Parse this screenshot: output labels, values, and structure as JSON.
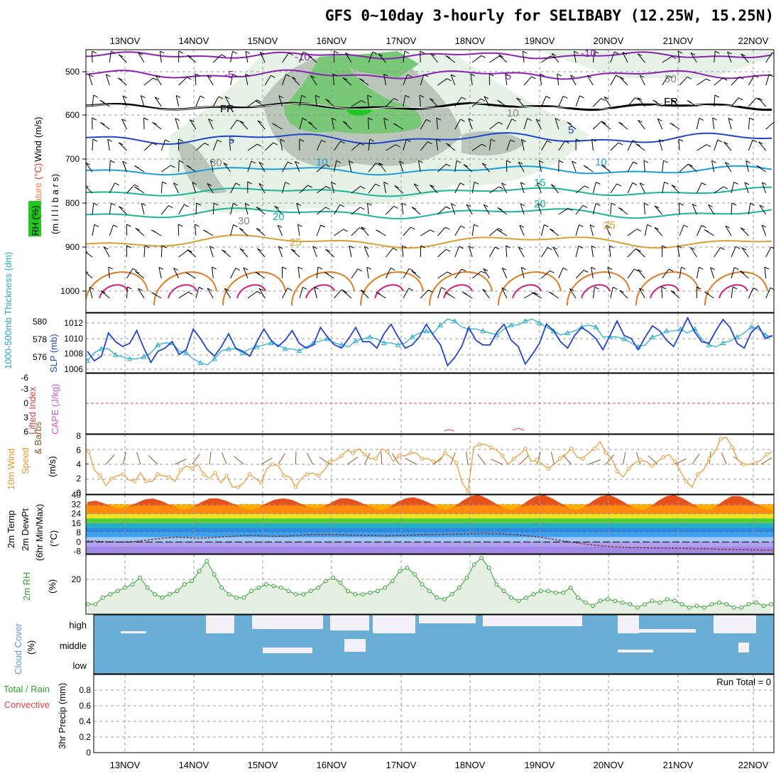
{
  "title": "GFS 0~10day 3-hourly for SELIBABY (12.25W, 15.25N)",
  "dates": [
    "13NOV",
    "14NOV",
    "15NOV",
    "16NOV",
    "17NOV",
    "18NOV",
    "19NOV",
    "20NOV",
    "21NOV",
    "22NOV"
  ],
  "run_total": "Run Total = 0",
  "colors": {
    "rh_green": "#63c363",
    "rh_light": "#e6f2e6",
    "rh_dark": "#b9c6b9",
    "sfc_blue": "#2244cc",
    "thick_cyan": "#22aacc",
    "wind_orange": "#e8962a",
    "cloud_blue": "#6aaed6",
    "rh2m_green": "#2ea02e",
    "li_red": "#e04040"
  },
  "panels": {
    "upper": {
      "labels": {
        "wind": "Wind",
        "wind_unit": "(m/s)",
        "temp": "Temperature",
        "temp_unit": "(°C)",
        "rh": "RH (%)",
        "pressure": "(m i l l i b a r s)"
      },
      "y_ticks": [
        "500",
        "600",
        "700",
        "800",
        "900",
        "1000"
      ],
      "contour_labels": [
        {
          "text": "-10",
          "color": "#8b22b4"
        },
        {
          "text": "-10",
          "color": "#8b22b4"
        },
        {
          "text": "-5",
          "color": "#8b22b4"
        },
        {
          "text": "5",
          "color": "#8b22b4"
        },
        {
          "text": "FR",
          "color": "#000000"
        },
        {
          "text": "FR",
          "color": "#000000"
        },
        {
          "text": "5",
          "color": "#2244cc"
        },
        {
          "text": "5",
          "color": "#2244cc"
        },
        {
          "text": "10",
          "color": "#1aa0dd"
        },
        {
          "text": "10",
          "color": "#1aa0dd"
        },
        {
          "text": "15",
          "color": "#1ab59a"
        },
        {
          "text": "20",
          "color": "#1ab59a"
        },
        {
          "text": "20",
          "color": "#1ab59a"
        },
        {
          "text": "25",
          "color": "#d9a030"
        },
        {
          "text": "25",
          "color": "#d9a030"
        },
        {
          "text": "30",
          "color": "#888888"
        },
        {
          "text": "30",
          "color": "#888888"
        },
        {
          "text": "10",
          "color": "#888888"
        },
        {
          "text": "30",
          "color": "#888888"
        }
      ]
    },
    "sfc": {
      "label_thick": "1000-500mb Thickness (dm)",
      "label_slp": "SLP (mb)",
      "left_ticks": [
        "580",
        "578",
        "576"
      ],
      "right_ticks": [
        "1012",
        "1010",
        "1008",
        "1006"
      ]
    },
    "cape": {
      "label_li": "Lifted Index",
      "label_cape": "CAPE (J/kg)",
      "ticks": [
        "-6",
        "-3",
        "0",
        "3",
        "6"
      ]
    },
    "wind10": {
      "label1": "10m Wind",
      "label2": "Speed",
      "label3": "& Barbs",
      "unit": "(m/s)",
      "ticks": [
        "8",
        "6",
        "4",
        "2",
        "0"
      ]
    },
    "temp2m": {
      "label1": "2m Temp",
      "label2": "2m DewPt",
      "label3": "(6hr Min/Max)",
      "unit": "(°C)",
      "ticks": [
        "40",
        "32",
        "24",
        "16",
        "8",
        "0",
        "-8"
      ]
    },
    "rh2m": {
      "label": "2m RH",
      "unit": "(%)",
      "ticks": [
        "20"
      ]
    },
    "cloud": {
      "label": "Cloud Cover",
      "unit": "(%)",
      "levels": [
        "high",
        "middle",
        "low"
      ]
    },
    "precip": {
      "label": "3hr Precip (mm)",
      "label_total": "Total / Rain",
      "label_conv": "Convective",
      "ticks": [
        "0.8",
        "0.6",
        "0.4",
        "0.2",
        "0"
      ]
    }
  },
  "chart_data": [
    {
      "type": "line",
      "title": "1000-500mb Thickness (dm) / SLP (mb)",
      "x_unit": "3-hourly steps from 12NOV 12Z",
      "ylim_thickness": [
        575,
        581
      ],
      "ylim_slp": [
        1005.5,
        1013
      ],
      "series": [
        {
          "name": "SLP (mb)",
          "values": [
            1008.2,
            1007.0,
            1007.6,
            1010.5,
            1009.4,
            1008.8,
            1009.2,
            1010.8,
            1008.6,
            1006.8,
            1008.2,
            1008.6,
            1009.4,
            1007.8,
            1008.4,
            1011.0,
            1009.8,
            1008.4,
            1007.6,
            1008.8,
            1010.4,
            1008.6,
            1008.2,
            1007.6,
            1009.4,
            1011.0,
            1009.6,
            1008.8,
            1009.6,
            1010.8,
            1009.2,
            1008.6,
            1009.0,
            1011.2,
            1010.0,
            1009.0,
            1008.6,
            1009.8,
            1011.2,
            1009.4,
            1009.4,
            1008.6,
            1010.4,
            1011.6,
            1010.0,
            1008.6,
            1009.0,
            1010.0,
            1011.6,
            1010.2,
            1009.0,
            1006.4,
            1007.4,
            1008.8,
            1011.2,
            1009.6,
            1009.0,
            1009.0,
            1010.6,
            1011.6,
            1009.6,
            1008.8,
            1006.6,
            1007.8,
            1009.2,
            1011.6,
            1010.8,
            1009.4,
            1008.6,
            1010.2,
            1011.2,
            1010.6,
            1009.8,
            1008.4,
            1010.2,
            1012.0,
            1010.2,
            1009.8,
            1008.4,
            1010.0,
            1011.4,
            1010.8,
            1009.6,
            1008.8,
            1010.6,
            1012.4,
            1010.6,
            1009.4,
            1009.2,
            1010.8,
            1012.2,
            1011.2,
            1009.2,
            1008.6,
            1010.6,
            1011.4,
            1009.8,
            1010.2
          ]
        },
        {
          "name": "1000-500mb Thickness (dm)",
          "values": [
            576.2,
            577.0,
            577.4,
            577.4,
            576.8,
            576.6,
            576.4,
            576.4,
            576.6,
            577.0,
            577.8,
            578.0,
            578.0,
            577.2,
            577.0,
            576.4,
            576.0,
            575.8,
            576.4,
            577.2,
            577.4,
            577.4,
            577.0,
            577.4,
            577.6,
            577.8,
            578.0,
            577.8,
            577.4,
            577.4,
            577.2,
            577.6,
            578.0,
            578.2,
            578.4,
            578.0,
            577.8,
            577.6,
            578.2,
            578.4,
            578.6,
            578.4,
            578.0,
            578.0,
            577.8,
            578.0,
            578.6,
            579.0,
            579.2,
            579.0,
            579.8,
            580.4,
            580.2,
            579.6,
            579.4,
            579.4,
            579.2,
            579.0,
            578.8,
            579.4,
            579.8,
            579.8,
            580.2,
            580.4,
            580.0,
            579.6,
            579.2,
            578.8,
            579.0,
            579.2,
            579.6,
            579.8,
            579.6,
            578.6,
            578.6,
            578.6,
            578.4,
            578.0,
            577.6,
            577.8,
            578.6,
            578.8,
            579.2,
            579.2,
            579.4,
            579.0,
            579.4,
            578.4,
            577.8,
            577.6,
            578.0,
            578.2,
            578.6,
            579.0,
            579.6,
            579.4,
            578.8,
            578.6
          ]
        }
      ]
    },
    {
      "type": "line",
      "title": "10m Wind Speed (m/s)",
      "ylim": [
        0,
        8
      ],
      "series": [
        {
          "name": "10m Wind Speed",
          "values": [
            5.8,
            3.2,
            2.4,
            1.0,
            2.0,
            2.4,
            2.6,
            1.8,
            1.6,
            2.8,
            1.6,
            1.6,
            2.6,
            2.4,
            2.2,
            1.6,
            3.2,
            3.8,
            3.4,
            4.0,
            2.6,
            2.0,
            2.8,
            1.4,
            2.4,
            0.8,
            0.8,
            1.4,
            2.6,
            2.0,
            1.4,
            3.4,
            4.0,
            3.8,
            2.4,
            2.2,
            0.8,
            2.0,
            2.6,
            2.8,
            2.4,
            3.2,
            4.4,
            4.6,
            5.2,
            6.0,
            5.6,
            6.2,
            5.4,
            4.8,
            4.8,
            6.2,
            5.8,
            4.4,
            5.2,
            5.2,
            5.6,
            5.6,
            4.8,
            4.8,
            4.4,
            4.4,
            5.6,
            5.0,
            4.2,
            1.4,
            0.2,
            6.4,
            6.8,
            6.8,
            6.4,
            6.0,
            5.2,
            4.0,
            4.8,
            5.4,
            6.2,
            4.4,
            4.6,
            4.0,
            3.4,
            4.0,
            4.8,
            5.4,
            6.2,
            5.0,
            4.8,
            5.6,
            6.2,
            7.2,
            5.6,
            4.8,
            3.0,
            2.2,
            3.4,
            4.2,
            4.6,
            4.4,
            3.8,
            4.4,
            5.0,
            5.4,
            4.4,
            3.0,
            1.6,
            0.8,
            2.6,
            3.2,
            4.8,
            5.8,
            7.6,
            7.8,
            6.4,
            4.6,
            4.0,
            4.0,
            4.2,
            4.6,
            5.4,
            5.8
          ]
        }
      ]
    },
    {
      "type": "area",
      "title": "2m Temp / 2m DewPt (°C)",
      "ylim": [
        -10,
        40
      ],
      "series": [
        {
          "name": "2m Temp",
          "values": [
            34,
            35,
            33,
            30,
            28,
            30,
            33,
            36,
            37,
            35,
            32,
            29,
            27,
            30,
            34,
            37,
            37,
            35,
            32,
            29,
            27,
            29,
            33,
            36,
            37,
            36,
            33,
            30,
            28,
            30,
            34,
            37,
            37,
            35,
            32,
            29,
            27,
            29,
            34,
            37,
            38,
            36,
            33,
            29,
            27,
            30,
            35,
            39,
            40,
            37,
            33,
            29,
            27,
            30,
            35,
            39,
            40,
            37,
            33,
            29,
            27,
            30,
            35,
            39,
            40,
            37,
            33,
            29,
            27,
            30,
            35,
            39,
            40,
            37,
            33,
            29,
            27,
            30,
            35,
            39,
            39,
            36,
            32,
            29,
            27
          ]
        },
        {
          "name": "2m DewPt",
          "values": [
            1.0,
            0.6,
            0.2,
            0.0,
            0.2,
            1.2,
            2.4,
            3.4,
            4.0,
            3.8,
            3.2,
            3.6,
            4.2,
            4.8,
            5.4,
            5.6,
            5.2,
            4.8,
            5.0,
            5.6,
            6.2,
            6.4,
            6.2,
            6.0,
            5.8,
            5.6,
            5.4,
            5.2,
            5.4,
            5.8,
            6.0,
            6.2,
            6.4,
            6.6,
            6.8,
            7.0,
            7.2,
            7.0,
            6.6,
            6.0,
            5.2,
            4.0,
            2.6,
            1.0,
            -0.4,
            -1.6,
            -2.8,
            -3.6,
            -4.2,
            -4.6,
            -4.8,
            -5.0,
            -5.2,
            -5.2,
            -5.4,
            -5.6,
            -5.8,
            -6.0,
            -6.2,
            -6.4,
            -6.6,
            -6.8,
            -7.0
          ]
        }
      ]
    },
    {
      "type": "line",
      "title": "2m RH (%)",
      "series": [
        {
          "name": "2m RH",
          "values": [
            6,
            6,
            10,
            12,
            14,
            16,
            18,
            22,
            16,
            12,
            10,
            12,
            14,
            18,
            20,
            26,
            32,
            24,
            16,
            12,
            10,
            10,
            14,
            16,
            18,
            17,
            16,
            14,
            12,
            12,
            14,
            16,
            20,
            22,
            19,
            14,
            12,
            12,
            13,
            14,
            16,
            20,
            26,
            28,
            24,
            18,
            14,
            10,
            9,
            12,
            16,
            22,
            30,
            34,
            28,
            18,
            14,
            10,
            8,
            10,
            12,
            14,
            14,
            13,
            13,
            16,
            10,
            7,
            5,
            8,
            9,
            8,
            7,
            6,
            4,
            6,
            8,
            7,
            9,
            8,
            6,
            4,
            5,
            4,
            6,
            7,
            6,
            4,
            4,
            6,
            7,
            5,
            6
          ]
        }
      ]
    }
  ]
}
